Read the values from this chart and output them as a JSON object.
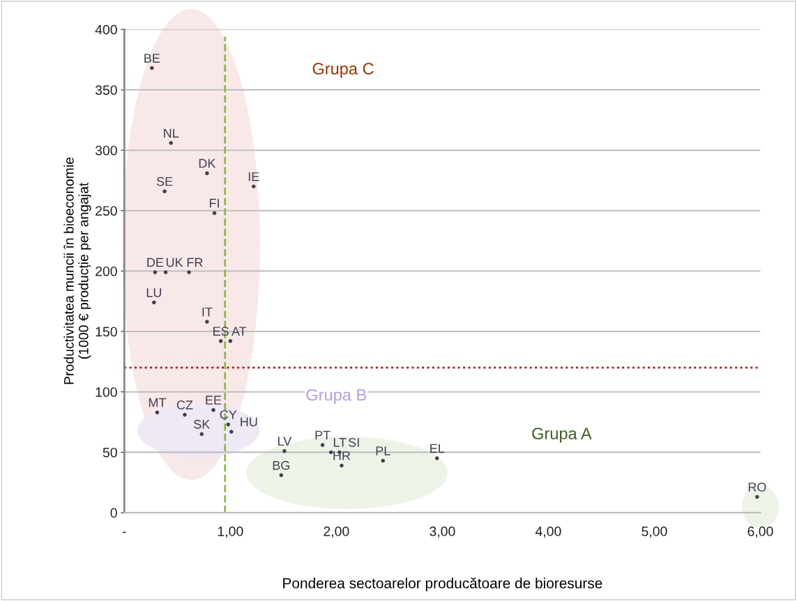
{
  "chart_data": {
    "type": "scatter",
    "xlabel": "Ponderea sectoarelor producătoare de bioresurse",
    "ylabel": "Productivitatea muncii în bioeconomie\n(1000 € producție per angajat",
    "xlim": [
      0,
      6
    ],
    "ylim": [
      0,
      400
    ],
    "xticks": [
      {
        "value": 0,
        "label": "-"
      },
      {
        "value": 1,
        "label": "1,00"
      },
      {
        "value": 2,
        "label": "2,00"
      },
      {
        "value": 3,
        "label": "3,00"
      },
      {
        "value": 4,
        "label": "4,00"
      },
      {
        "value": 5,
        "label": "5,00"
      },
      {
        "value": 6,
        "label": "6,00"
      }
    ],
    "yticks": [
      0,
      50,
      100,
      150,
      200,
      250,
      300,
      350,
      400
    ],
    "grid": "y",
    "marker": "circle",
    "legend": false,
    "series": [
      {
        "color": "#404050",
        "x": [
          0.26,
          0.44,
          0.78,
          0.38,
          1.22,
          0.85,
          0.29,
          0.39,
          0.61,
          0.28,
          0.78,
          0.91,
          1.0,
          0.31,
          0.57,
          0.84,
          0.98,
          0.73,
          1.01,
          1.51,
          1.48,
          1.87,
          1.95,
          2.03,
          2.05,
          2.44,
          2.95,
          5.97
        ],
        "values": [
          368,
          306,
          281,
          266,
          270,
          248,
          199,
          199,
          199,
          174,
          158,
          142,
          142,
          83,
          81,
          85,
          73,
          65,
          67,
          51,
          31,
          56,
          50,
          50,
          39,
          43,
          45,
          13
        ],
        "value_labels": [
          "BE",
          "NL",
          "DK",
          "SE",
          "IE",
          "FI",
          "DE",
          "UK",
          "FR",
          "LU",
          "IT",
          "ES",
          "AT",
          "MT",
          "CZ",
          "EE",
          "CY",
          "SK",
          "HU",
          "LV",
          "BG",
          "PT",
          "LT",
          "SI",
          "HR",
          "PL",
          "EL",
          "RO"
        ]
      }
    ],
    "ref_lines": [
      {
        "axis": "x",
        "value": 0.95,
        "color": "#8db84a",
        "line_style": "dashed"
      },
      {
        "axis": "y",
        "value": 120,
        "color": "#c00000",
        "line_style": "dotted"
      }
    ],
    "annotations": [
      "Grupa C",
      "Grupa B",
      "Grupa A"
    ]
  }
}
